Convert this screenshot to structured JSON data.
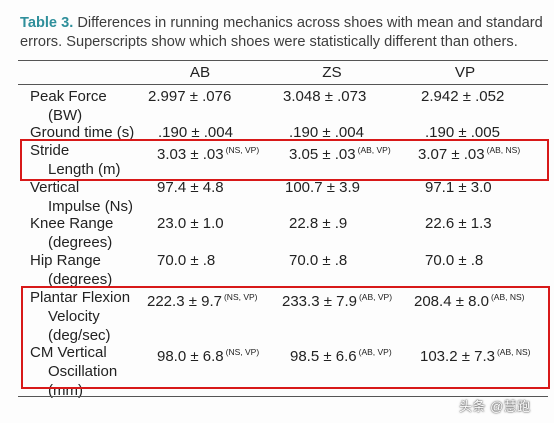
{
  "caption": {
    "label": "Table 3.",
    "text": " Differences in running mechanics across shoes with mean and standard errors. Superscripts show which shoes were statistically different than others."
  },
  "columns": [
    "AB",
    "ZS",
    "VP"
  ],
  "rows": [
    {
      "label": [
        "Peak Force",
        "(BW)"
      ],
      "values": [
        "2.997 ± .076",
        "3.048 ± .073",
        "2.942 ± .052"
      ],
      "sups": [
        "",
        "",
        ""
      ]
    },
    {
      "label": [
        "Ground time (s)"
      ],
      "values": [
        ".190 ± .004",
        ".190 ± .004",
        ".190 ± .005"
      ],
      "sups": [
        "",
        "",
        ""
      ]
    },
    {
      "label": [
        "Stride",
        "Length (m)"
      ],
      "values": [
        "3.03 ± .03",
        "3.05 ± .03",
        "3.07 ± .03"
      ],
      "sups": [
        "(NS, VP)",
        "(AB, VP)",
        "(AB, NS)"
      ]
    },
    {
      "label": [
        "Vertical",
        "Impulse (Ns)"
      ],
      "values": [
        "97.4 ± 4.8",
        "100.7 ± 3.9",
        "97.1 ± 3.0"
      ],
      "sups": [
        "",
        "",
        ""
      ]
    },
    {
      "label": [
        "Knee Range",
        "(degrees)"
      ],
      "values": [
        "23.0 ± 1.0",
        "22.8 ± .9",
        "22.6 ± 1.3"
      ],
      "sups": [
        "",
        "",
        ""
      ]
    },
    {
      "label": [
        "Hip Range",
        "(degrees)"
      ],
      "values": [
        "70.0 ± .8",
        "70.0 ± .8",
        "70.0 ± .8"
      ],
      "sups": [
        "",
        "",
        ""
      ]
    },
    {
      "label": [
        "Plantar Flexion",
        "Velocity",
        "(deg/sec)"
      ],
      "values": [
        "222.3 ± 9.7",
        "233.3 ± 7.9",
        "208.4 ± 8.0"
      ],
      "sups": [
        "(NS, VP)",
        "(AB, VP)",
        "(AB, NS)"
      ]
    },
    {
      "label": [
        "CM Vertical",
        "Oscillation",
        "(mm)"
      ],
      "values": [
        "98.0 ± 6.8",
        "98.5 ± 6.6",
        "103.2 ± 7.3"
      ],
      "sups": [
        "(NS, VP)",
        "(AB, VP)",
        "(AB, NS)"
      ]
    }
  ],
  "watermark": "头条 @慧跑",
  "colors": {
    "caption_label": "#2f8f9b",
    "highlight": "#d81919"
  }
}
